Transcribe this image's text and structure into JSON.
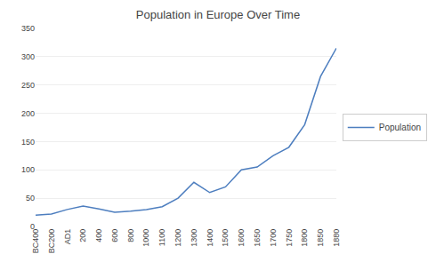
{
  "chart_data": {
    "type": "line",
    "title": "Population in Europe Over Time",
    "categories": [
      "BC400",
      "BC200",
      "AD1",
      "200",
      "400",
      "600",
      "800",
      "1000",
      "1100",
      "1200",
      "1300",
      "1400",
      "1500",
      "1600",
      "1650",
      "1700",
      "1750",
      "1800",
      "1850",
      "1880"
    ],
    "series": [
      {
        "name": "Population",
        "color": "#4d7ebf",
        "values": [
          20,
          22,
          30,
          36,
          31,
          25,
          27,
          30,
          35,
          50,
          78,
          60,
          70,
          100,
          105,
          125,
          140,
          180,
          265,
          315
        ]
      }
    ],
    "ylim": [
      0,
      350
    ],
    "yticks": [
      0,
      50,
      100,
      150,
      200,
      250,
      300,
      350
    ],
    "grid": true,
    "legend": "right"
  }
}
